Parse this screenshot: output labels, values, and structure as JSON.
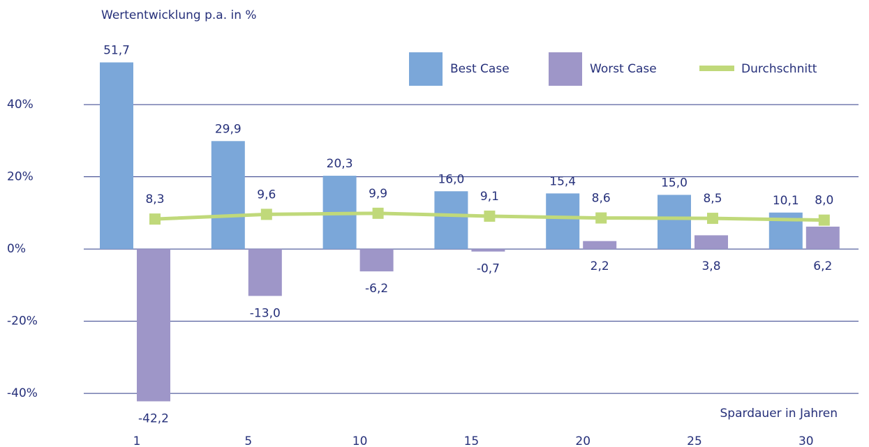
{
  "chart_data": {
    "type": "bar_line",
    "y_label": "Wertentwicklung p.a. in %",
    "x_label": "Spardauer in Jahren",
    "categories": [
      "1",
      "5",
      "10",
      "15",
      "20",
      "25",
      "30"
    ],
    "series": [
      {
        "name": "Best Case",
        "type": "bar",
        "color": "#7ba7d9",
        "values": [
          51.7,
          29.9,
          20.3,
          16.0,
          15.4,
          15.0,
          10.1
        ],
        "value_labels": [
          "51,7",
          "29,9",
          "20,3",
          "16,0",
          "15,4",
          "15,0",
          "10,1"
        ]
      },
      {
        "name": "Worst Case",
        "type": "bar",
        "color": "#9e96c8",
        "values": [
          -42.2,
          -13.0,
          -6.2,
          -0.7,
          2.2,
          3.8,
          6.2
        ],
        "value_labels": [
          "-42,2",
          "-13,0",
          "-6,2",
          "-0,7",
          "2,2",
          "3,8",
          "6,2"
        ]
      },
      {
        "name": "Durchschnitt",
        "type": "line",
        "color": "#c0d97a",
        "values": [
          8.3,
          9.6,
          9.9,
          9.1,
          8.6,
          8.5,
          8.0
        ],
        "value_labels": [
          "8,3",
          "9,6",
          "9,9",
          "9,1",
          "8,6",
          "8,5",
          "8,0"
        ]
      }
    ],
    "ylim": [
      -45,
      55
    ],
    "yticks": [
      {
        "value": -40,
        "label": "-40%"
      },
      {
        "value": -20,
        "label": "-20%"
      },
      {
        "value": 0,
        "label": "0%"
      },
      {
        "value": 20,
        "label": "20%"
      },
      {
        "value": 40,
        "label": "40%"
      }
    ],
    "grid": true
  }
}
